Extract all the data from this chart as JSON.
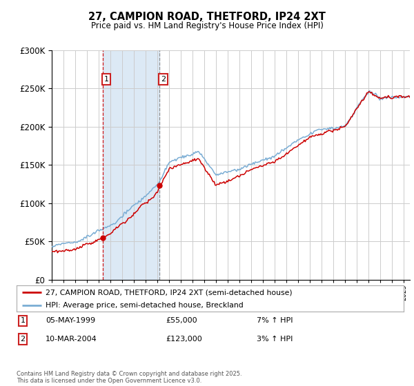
{
  "title1": "27, CAMPION ROAD, THETFORD, IP24 2XT",
  "title2": "Price paid vs. HM Land Registry's House Price Index (HPI)",
  "legend_line1": "27, CAMPION ROAD, THETFORD, IP24 2XT (semi-detached house)",
  "legend_line2": "HPI: Average price, semi-detached house, Breckland",
  "sale1_date": "05-MAY-1999",
  "sale1_price": 55000,
  "sale1_pct": "7% ↑ HPI",
  "sale2_date": "10-MAR-2004",
  "sale2_price": 123000,
  "sale2_pct": "3% ↑ HPI",
  "footnote": "Contains HM Land Registry data © Crown copyright and database right 2025.\nThis data is licensed under the Open Government Licence v3.0.",
  "xmin": 1995.0,
  "xmax": 2025.5,
  "ymin": 0,
  "ymax": 300000,
  "sale1_x": 1999.34,
  "sale2_x": 2004.19,
  "line_color": "#cc0000",
  "hpi_color": "#7aadd4",
  "shade_color": "#dce9f5",
  "grid_color": "#cccccc",
  "background_color": "#ffffff",
  "sale2_vline_color": "#aaaaaa"
}
